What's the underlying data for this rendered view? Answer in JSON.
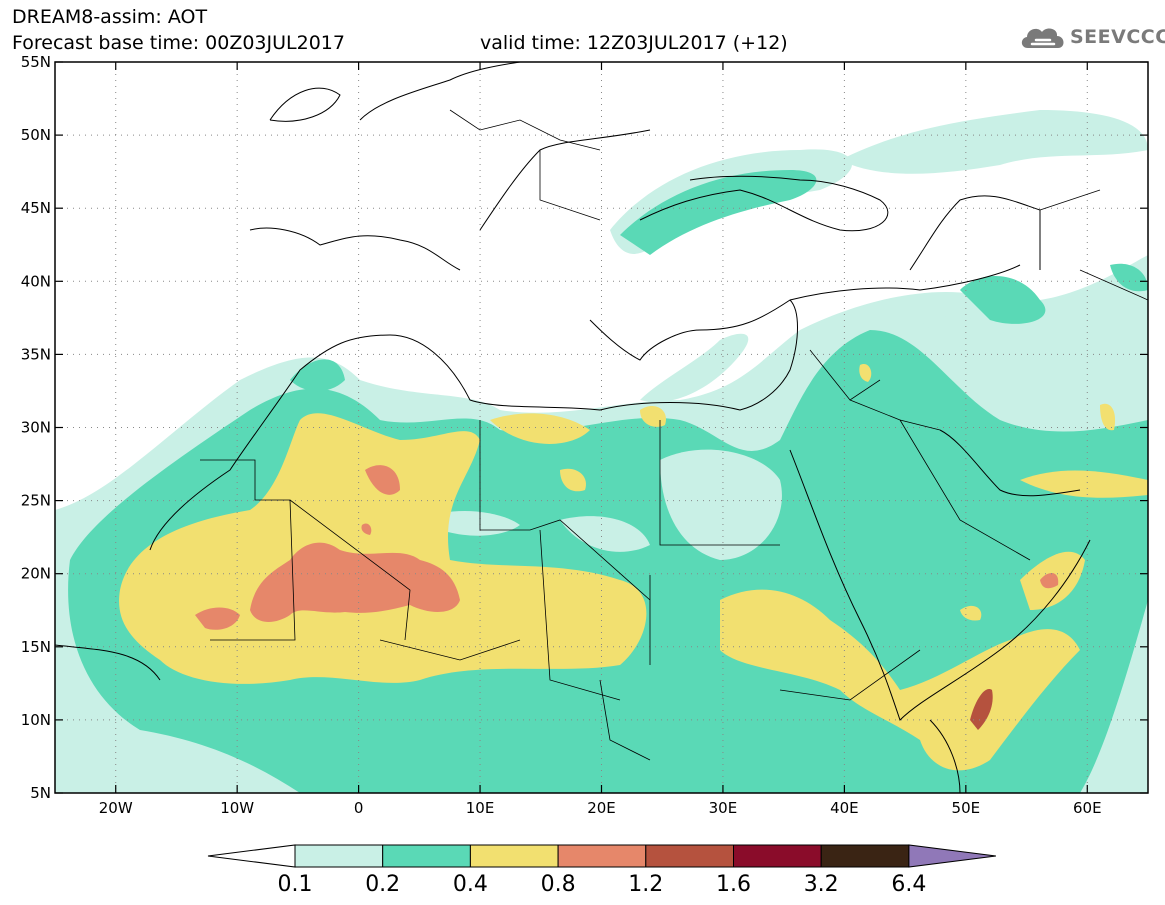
{
  "header": {
    "line1": "DREAM8-assim: AOT",
    "line2": "Forecast base time: 00Z03JUL2017",
    "valid": "valid time: 12Z03JUL2017 (+12)"
  },
  "logo": {
    "text": "SEEVCCC",
    "icon": "cloud-icon"
  },
  "map": {
    "lon_range": [
      -25,
      65
    ],
    "lat_range": [
      5,
      55
    ],
    "lat_ticks": [
      "5N",
      "10N",
      "15N",
      "20N",
      "25N",
      "30N",
      "35N",
      "40N",
      "45N",
      "50N",
      "55N"
    ],
    "lon_ticks": [
      "20W",
      "10W",
      "0",
      "10E",
      "20E",
      "30E",
      "40E",
      "50E",
      "60E"
    ],
    "grid": true
  },
  "colorbar": {
    "labels": [
      "0.1",
      "0.2",
      "0.4",
      "0.8",
      "1.2",
      "1.6",
      "3.2",
      "6.4"
    ],
    "colors": [
      "#c9f0e6",
      "#5ad9b6",
      "#f2e070",
      "#e6876a",
      "#b5523e",
      "#8a0c2a",
      "#3a2414",
      "#9078b8"
    ]
  }
}
